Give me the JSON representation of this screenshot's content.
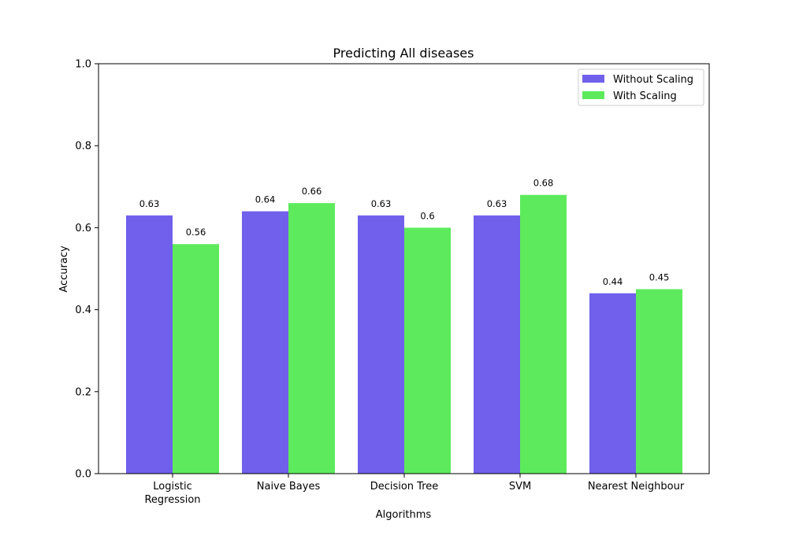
{
  "chart_data": {
    "type": "bar",
    "title": "Predicting All diseases",
    "xlabel": "Algorithms",
    "ylabel": "Accuracy",
    "ylim": [
      0,
      1.0
    ],
    "yticks": [
      "0.0",
      "0.2",
      "0.4",
      "0.6",
      "0.8",
      "1.0"
    ],
    "categories": [
      [
        "Logistic",
        "Regression"
      ],
      [
        "Naive Bayes"
      ],
      [
        "Decision Tree"
      ],
      [
        "SVM"
      ],
      [
        "Nearest Neighbour"
      ]
    ],
    "series": [
      {
        "name": "Without Scaling",
        "color": "#7060eb",
        "values": [
          0.63,
          0.64,
          0.63,
          0.63,
          0.44
        ],
        "labels": [
          "0.63",
          "0.64",
          "0.63",
          "0.63",
          "0.44"
        ]
      },
      {
        "name": "With Scaling",
        "color": "#5deb5d",
        "values": [
          0.56,
          0.66,
          0.6,
          0.68,
          0.45
        ],
        "labels": [
          "0.56",
          "0.66",
          "0.6",
          "0.68",
          "0.45"
        ]
      }
    ],
    "legend_position": "top-right",
    "grid": false
  }
}
